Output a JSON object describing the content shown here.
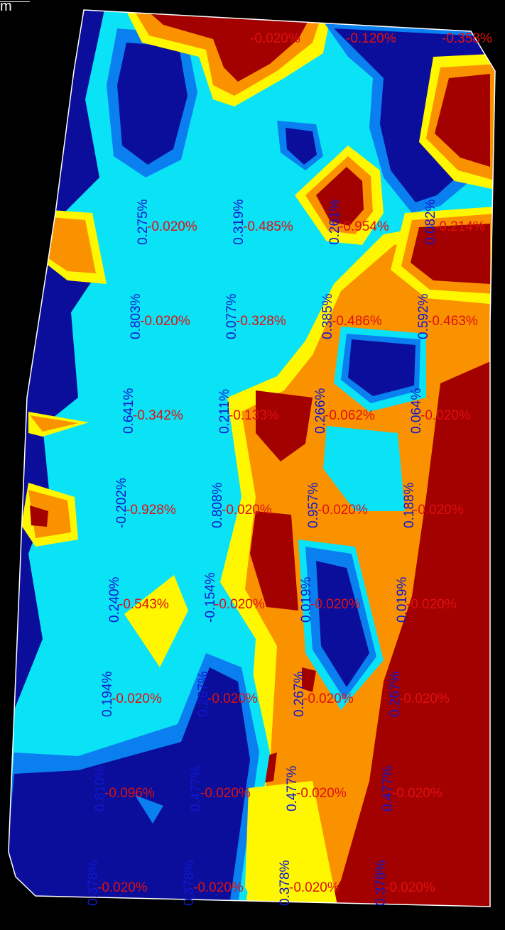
{
  "corner_text": "m",
  "colors": {
    "background": "#000000",
    "navy": "#0b0e9b",
    "blue": "#0a7ff0",
    "cyan": "#0ae2f6",
    "yellow": "#fff700",
    "orange": "#fa9200",
    "darkred": "#a30000",
    "outline": "#ffffff",
    "label_pos": "#1018d0",
    "label_neg": "#e01010"
  },
  "chart_data": {
    "type": "heatmap",
    "title": "",
    "xlabel": "",
    "ylabel": "",
    "legend": "none",
    "grid": false,
    "columns": 5,
    "rows": 10,
    "labels": [
      {
        "row": 0,
        "col": 1,
        "first": null,
        "second": "-0.020%"
      },
      {
        "row": 0,
        "col": 2,
        "first": null,
        "second": "-0.120%"
      },
      {
        "row": 0,
        "col": 3,
        "first": null,
        "second": "-0.358%"
      },
      {
        "row": 1,
        "col": 0,
        "first": "0.275%",
        "second": "-0.020%"
      },
      {
        "row": 1,
        "col": 1,
        "first": "0.319%",
        "second": "-0.485%"
      },
      {
        "row": 1,
        "col": 2,
        "first": "0.261%",
        "second": "-0.954%"
      },
      {
        "row": 1,
        "col": 3,
        "first": "0.082%",
        "second": "-0.214%"
      },
      {
        "row": 2,
        "col": 0,
        "first": "0.803%",
        "second": "-0.020%"
      },
      {
        "row": 2,
        "col": 1,
        "first": "0.077%",
        "second": "-0.328%"
      },
      {
        "row": 2,
        "col": 2,
        "first": "0.385%",
        "second": "-0.486%"
      },
      {
        "row": 2,
        "col": 3,
        "first": "0.592%",
        "second": "-0.463%"
      },
      {
        "row": 3,
        "col": 0,
        "first": "0.641%",
        "second": "-0.342%"
      },
      {
        "row": 3,
        "col": 1,
        "first": "0.211%",
        "second": "-0.133%"
      },
      {
        "row": 3,
        "col": 2,
        "first": "0.266%",
        "second": "-0.062%"
      },
      {
        "row": 3,
        "col": 3,
        "first": "0.064%",
        "second": "-0.020%"
      },
      {
        "row": 4,
        "col": 0,
        "first": "-0.202%",
        "second": "-0.928%"
      },
      {
        "row": 4,
        "col": 1,
        "first": "0.808%",
        "second": "-0.020%"
      },
      {
        "row": 4,
        "col": 2,
        "first": "0.957%",
        "second": "-0.020%"
      },
      {
        "row": 4,
        "col": 3,
        "first": "0.188%",
        "second": "-0.020%"
      },
      {
        "row": 5,
        "col": 0,
        "first": "0.240%",
        "second": "-0.543%"
      },
      {
        "row": 5,
        "col": 1,
        "first": "-0.154%",
        "second": "-0.020%"
      },
      {
        "row": 5,
        "col": 2,
        "first": "0.019%",
        "second": "-0.020%"
      },
      {
        "row": 5,
        "col": 3,
        "first": "0.019%",
        "second": "-0.020%"
      },
      {
        "row": 6,
        "col": 0,
        "first": "0.194%",
        "second": "-0.020%"
      },
      {
        "row": 6,
        "col": 1,
        "first": "0.267%",
        "second": "-0.020%"
      },
      {
        "row": 6,
        "col": 2,
        "first": "0.267%",
        "second": "-0.020%"
      },
      {
        "row": 6,
        "col": 3,
        "first": "0.267%",
        "second": "-0.020%"
      },
      {
        "row": 7,
        "col": 0,
        "first": "0.810%",
        "second": "-0.096%"
      },
      {
        "row": 7,
        "col": 1,
        "first": "0.477%",
        "second": "-0.020%"
      },
      {
        "row": 7,
        "col": 2,
        "first": "0.477%",
        "second": "-0.020%"
      },
      {
        "row": 7,
        "col": 3,
        "first": "0.477%",
        "second": "-0.020%"
      },
      {
        "row": 8,
        "col": 0,
        "first": "0.378%",
        "second": "-0.020%"
      },
      {
        "row": 8,
        "col": 1,
        "first": "0.378%",
        "second": "-0.020%"
      },
      {
        "row": 8,
        "col": 2,
        "first": "0.378%",
        "second": "-0.020%"
      },
      {
        "row": 8,
        "col": 3,
        "first": "0.378%",
        "second": "-0.020%"
      }
    ]
  }
}
